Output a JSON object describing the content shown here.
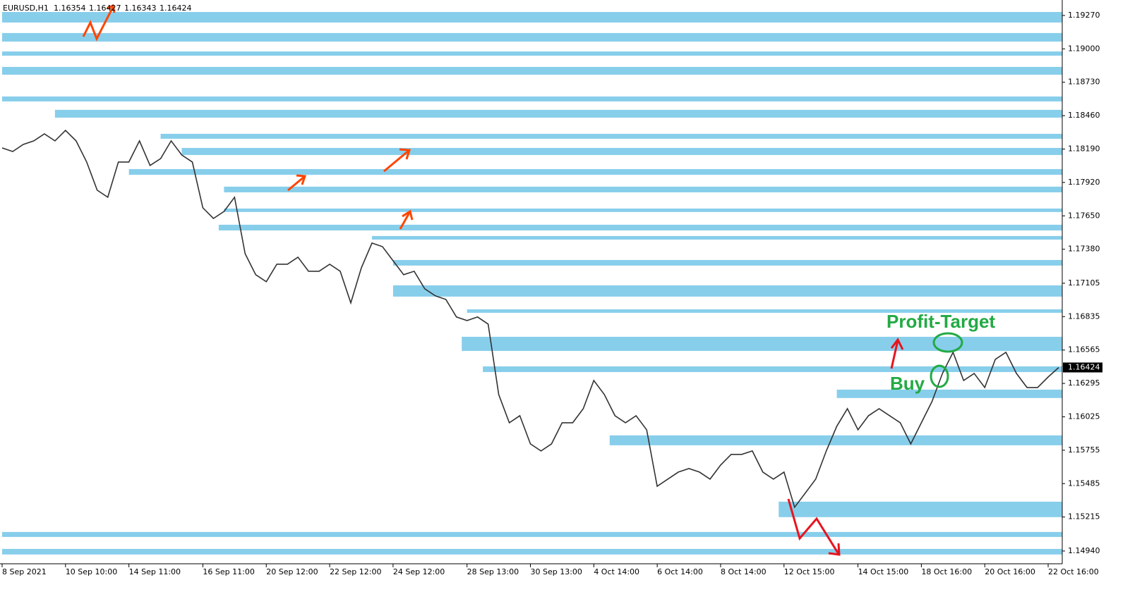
{
  "chart_data": {
    "type": "line",
    "symbol": "EURUSD,H1",
    "ohlc": [
      1.16354,
      1.16427,
      1.16343,
      1.16424
    ],
    "last_price": 1.16424,
    "annotations": [
      "Profit-Target",
      "Buy"
    ],
    "ylim": [
      1.14837,
      1.19395
    ],
    "yticks": [
      {
        "value": 1.1927,
        "label": "1.19270"
      },
      {
        "value": 1.19,
        "label": "1.19000"
      },
      {
        "value": 1.1873,
        "label": "1.18730"
      },
      {
        "value": 1.1846,
        "label": "1.18460"
      },
      {
        "value": 1.1819,
        "label": "1.18190"
      },
      {
        "value": 1.1792,
        "label": "1.17920"
      },
      {
        "value": 1.1765,
        "label": "1.17650"
      },
      {
        "value": 1.1738,
        "label": "1.17380"
      },
      1.17105,
      1.16835,
      1.16565,
      1.16295,
      1.16025,
      1.15755,
      1.15485,
      1.15215,
      {
        "value": 1.1494,
        "label": "1.14940"
      }
    ],
    "grid": false,
    "categories": [
      "8 Sep 2021",
      null,
      null,
      null,
      null,
      null,
      "10 Sep 10:00",
      null,
      null,
      null,
      null,
      null,
      "14 Sep 11:00",
      null,
      null,
      null,
      null,
      null,
      null,
      "16 Sep 11:00",
      null,
      null,
      null,
      null,
      null,
      "20 Sep 12:00",
      null,
      null,
      null,
      null,
      null,
      "22 Sep 12:00",
      null,
      null,
      null,
      null,
      null,
      "24 Sep 12:00",
      null,
      null,
      null,
      null,
      null,
      null,
      "28 Sep 13:00",
      null,
      null,
      null,
      null,
      null,
      "30 Sep 13:00",
      null,
      null,
      null,
      null,
      null,
      "4 Oct 14:00",
      null,
      null,
      null,
      null,
      null,
      "6 Oct 14:00",
      null,
      null,
      null,
      null,
      null,
      "8 Oct 14:00",
      null,
      null,
      null,
      null,
      null,
      "12 Oct 15:00",
      null,
      null,
      null,
      null,
      null,
      null,
      "14 Oct 15:00",
      null,
      null,
      null,
      null,
      null,
      "18 Oct 16:00",
      null,
      null,
      null,
      null,
      null,
      "20 Oct 16:00",
      null,
      null,
      null,
      null,
      null,
      "22 Oct 16:00",
      null
    ],
    "series": [
      {
        "name": "EURUSD",
        "color": "#333333",
        "values": [
          1.18199,
          1.1817,
          1.18227,
          1.18256,
          1.18313,
          1.18256,
          1.18341,
          1.18256,
          1.18085,
          1.17857,
          1.178,
          1.18085,
          1.18085,
          1.18256,
          1.18057,
          1.18113,
          1.18256,
          1.18142,
          1.18085,
          1.17715,
          1.17629,
          1.17686,
          1.178,
          1.17344,
          1.17174,
          1.17117,
          1.17259,
          1.17259,
          1.17316,
          1.17202,
          1.17202,
          1.17259,
          1.17202,
          1.16946,
          1.1723,
          1.1743,
          1.17401,
          1.17287,
          1.17174,
          1.17202,
          1.1706,
          1.17003,
          1.16974,
          1.16832,
          1.16803,
          1.16832,
          1.16775,
          1.16205,
          1.15977,
          1.16034,
          1.15806,
          1.15749,
          1.15806,
          1.15977,
          1.15977,
          1.16091,
          1.16319,
          1.16205,
          1.16034,
          1.15977,
          1.16034,
          1.1592,
          1.15464,
          1.15521,
          1.15578,
          1.15607,
          1.15578,
          1.15521,
          1.15635,
          1.15721,
          1.15721,
          1.15749,
          1.15578,
          1.15521,
          1.15578,
          1.15294,
          1.15407,
          1.15521,
          1.15749,
          1.15949,
          1.16091,
          1.1592,
          1.16034,
          1.16091,
          1.16034,
          1.15977,
          1.15806,
          1.15977,
          1.16148,
          1.16376,
          1.16547,
          1.16319,
          1.16376,
          1.16262,
          1.1649,
          1.16547,
          1.16376,
          1.16262,
          1.16262,
          1.16347,
          1.16424
        ]
      }
    ],
    "zone_color": "#87ceeb",
    "zones": [
      {
        "start": 0,
        "from": 1.19213,
        "to": 1.19298
      },
      {
        "start": 0,
        "from": 1.19059,
        "to": 1.19128
      },
      {
        "start": 0,
        "from": 1.18945,
        "to": 1.18979
      },
      {
        "start": 0,
        "from": 1.18791,
        "to": 1.18854
      },
      {
        "start": 0,
        "from": 1.18575,
        "to": 1.18615
      },
      {
        "start": 5,
        "from": 1.18444,
        "to": 1.18507
      },
      {
        "start": 15,
        "from": 1.18273,
        "to": 1.18313
      },
      {
        "start": 17,
        "from": 1.18142,
        "to": 1.18199
      },
      {
        "start": 12,
        "from": 1.17982,
        "to": 1.18028
      },
      {
        "start": 21,
        "from": 1.1784,
        "to": 1.17886
      },
      {
        "start": 21,
        "from": 1.17681,
        "to": 1.17709
      },
      {
        "start": 20.5,
        "from": 1.17532,
        "to": 1.17578
      },
      {
        "start": 35,
        "from": 1.17458,
        "to": 1.17487
      },
      {
        "start": 37,
        "from": 1.17248,
        "to": 1.17293
      },
      {
        "start": 37,
        "from": 1.16997,
        "to": 1.17088
      },
      {
        "start": 44,
        "from": 1.16866,
        "to": 1.16894
      },
      {
        "start": 43.5,
        "from": 1.16558,
        "to": 1.16672
      },
      {
        "start": 45.5,
        "from": 1.16387,
        "to": 1.16433
      },
      {
        "start": 79,
        "from": 1.16177,
        "to": 1.16245
      },
      {
        "start": 57.5,
        "from": 1.15795,
        "to": 1.15875
      },
      {
        "start": 73.5,
        "from": 1.15214,
        "to": 1.15339
      },
      {
        "start": 0,
        "from": 1.15054,
        "to": 1.15094
      },
      {
        "start": 0,
        "from": 1.14912,
        "to": 1.14957
      }
    ]
  }
}
